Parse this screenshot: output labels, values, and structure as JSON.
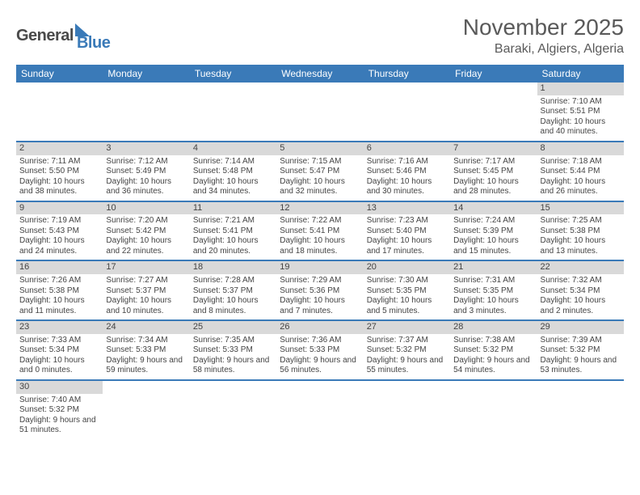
{
  "logo": {
    "main": "General",
    "sub": "Blue"
  },
  "title": "November 2025",
  "location": "Baraki, Algiers, Algeria",
  "day_headers": [
    "Sunday",
    "Monday",
    "Tuesday",
    "Wednesday",
    "Thursday",
    "Friday",
    "Saturday"
  ],
  "colors": {
    "header_bg": "#3a7ab8",
    "header_text": "#ffffff",
    "daynum_bg": "#d9d9d9",
    "row_border": "#3a7ab8"
  },
  "weeks": [
    [
      null,
      null,
      null,
      null,
      null,
      null,
      {
        "n": "1",
        "sunrise": "Sunrise: 7:10 AM",
        "sunset": "Sunset: 5:51 PM",
        "daylight": "Daylight: 10 hours and 40 minutes."
      }
    ],
    [
      {
        "n": "2",
        "sunrise": "Sunrise: 7:11 AM",
        "sunset": "Sunset: 5:50 PM",
        "daylight": "Daylight: 10 hours and 38 minutes."
      },
      {
        "n": "3",
        "sunrise": "Sunrise: 7:12 AM",
        "sunset": "Sunset: 5:49 PM",
        "daylight": "Daylight: 10 hours and 36 minutes."
      },
      {
        "n": "4",
        "sunrise": "Sunrise: 7:14 AM",
        "sunset": "Sunset: 5:48 PM",
        "daylight": "Daylight: 10 hours and 34 minutes."
      },
      {
        "n": "5",
        "sunrise": "Sunrise: 7:15 AM",
        "sunset": "Sunset: 5:47 PM",
        "daylight": "Daylight: 10 hours and 32 minutes."
      },
      {
        "n": "6",
        "sunrise": "Sunrise: 7:16 AM",
        "sunset": "Sunset: 5:46 PM",
        "daylight": "Daylight: 10 hours and 30 minutes."
      },
      {
        "n": "7",
        "sunrise": "Sunrise: 7:17 AM",
        "sunset": "Sunset: 5:45 PM",
        "daylight": "Daylight: 10 hours and 28 minutes."
      },
      {
        "n": "8",
        "sunrise": "Sunrise: 7:18 AM",
        "sunset": "Sunset: 5:44 PM",
        "daylight": "Daylight: 10 hours and 26 minutes."
      }
    ],
    [
      {
        "n": "9",
        "sunrise": "Sunrise: 7:19 AM",
        "sunset": "Sunset: 5:43 PM",
        "daylight": "Daylight: 10 hours and 24 minutes."
      },
      {
        "n": "10",
        "sunrise": "Sunrise: 7:20 AM",
        "sunset": "Sunset: 5:42 PM",
        "daylight": "Daylight: 10 hours and 22 minutes."
      },
      {
        "n": "11",
        "sunrise": "Sunrise: 7:21 AM",
        "sunset": "Sunset: 5:41 PM",
        "daylight": "Daylight: 10 hours and 20 minutes."
      },
      {
        "n": "12",
        "sunrise": "Sunrise: 7:22 AM",
        "sunset": "Sunset: 5:41 PM",
        "daylight": "Daylight: 10 hours and 18 minutes."
      },
      {
        "n": "13",
        "sunrise": "Sunrise: 7:23 AM",
        "sunset": "Sunset: 5:40 PM",
        "daylight": "Daylight: 10 hours and 17 minutes."
      },
      {
        "n": "14",
        "sunrise": "Sunrise: 7:24 AM",
        "sunset": "Sunset: 5:39 PM",
        "daylight": "Daylight: 10 hours and 15 minutes."
      },
      {
        "n": "15",
        "sunrise": "Sunrise: 7:25 AM",
        "sunset": "Sunset: 5:38 PM",
        "daylight": "Daylight: 10 hours and 13 minutes."
      }
    ],
    [
      {
        "n": "16",
        "sunrise": "Sunrise: 7:26 AM",
        "sunset": "Sunset: 5:38 PM",
        "daylight": "Daylight: 10 hours and 11 minutes."
      },
      {
        "n": "17",
        "sunrise": "Sunrise: 7:27 AM",
        "sunset": "Sunset: 5:37 PM",
        "daylight": "Daylight: 10 hours and 10 minutes."
      },
      {
        "n": "18",
        "sunrise": "Sunrise: 7:28 AM",
        "sunset": "Sunset: 5:37 PM",
        "daylight": "Daylight: 10 hours and 8 minutes."
      },
      {
        "n": "19",
        "sunrise": "Sunrise: 7:29 AM",
        "sunset": "Sunset: 5:36 PM",
        "daylight": "Daylight: 10 hours and 7 minutes."
      },
      {
        "n": "20",
        "sunrise": "Sunrise: 7:30 AM",
        "sunset": "Sunset: 5:35 PM",
        "daylight": "Daylight: 10 hours and 5 minutes."
      },
      {
        "n": "21",
        "sunrise": "Sunrise: 7:31 AM",
        "sunset": "Sunset: 5:35 PM",
        "daylight": "Daylight: 10 hours and 3 minutes."
      },
      {
        "n": "22",
        "sunrise": "Sunrise: 7:32 AM",
        "sunset": "Sunset: 5:34 PM",
        "daylight": "Daylight: 10 hours and 2 minutes."
      }
    ],
    [
      {
        "n": "23",
        "sunrise": "Sunrise: 7:33 AM",
        "sunset": "Sunset: 5:34 PM",
        "daylight": "Daylight: 10 hours and 0 minutes."
      },
      {
        "n": "24",
        "sunrise": "Sunrise: 7:34 AM",
        "sunset": "Sunset: 5:33 PM",
        "daylight": "Daylight: 9 hours and 59 minutes."
      },
      {
        "n": "25",
        "sunrise": "Sunrise: 7:35 AM",
        "sunset": "Sunset: 5:33 PM",
        "daylight": "Daylight: 9 hours and 58 minutes."
      },
      {
        "n": "26",
        "sunrise": "Sunrise: 7:36 AM",
        "sunset": "Sunset: 5:33 PM",
        "daylight": "Daylight: 9 hours and 56 minutes."
      },
      {
        "n": "27",
        "sunrise": "Sunrise: 7:37 AM",
        "sunset": "Sunset: 5:32 PM",
        "daylight": "Daylight: 9 hours and 55 minutes."
      },
      {
        "n": "28",
        "sunrise": "Sunrise: 7:38 AM",
        "sunset": "Sunset: 5:32 PM",
        "daylight": "Daylight: 9 hours and 54 minutes."
      },
      {
        "n": "29",
        "sunrise": "Sunrise: 7:39 AM",
        "sunset": "Sunset: 5:32 PM",
        "daylight": "Daylight: 9 hours and 53 minutes."
      }
    ],
    [
      {
        "n": "30",
        "sunrise": "Sunrise: 7:40 AM",
        "sunset": "Sunset: 5:32 PM",
        "daylight": "Daylight: 9 hours and 51 minutes."
      },
      null,
      null,
      null,
      null,
      null,
      null
    ]
  ]
}
